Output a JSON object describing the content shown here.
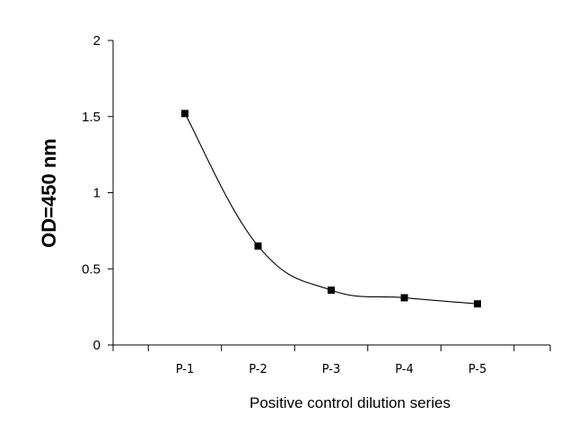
{
  "chart_data": {
    "type": "line",
    "smooth": true,
    "title": "",
    "xlabel": "Positive control dilution series",
    "ylabel": "OD=450 nm",
    "categories": [
      "P-1",
      "P-2",
      "P-3",
      "P-4",
      "P-5"
    ],
    "series": [
      {
        "values": [
          1.52,
          0.65,
          0.36,
          0.31,
          0.27
        ],
        "marker": "square",
        "color": "#000000"
      }
    ],
    "ylim": [
      0,
      2
    ],
    "yticks": [
      0,
      0.5,
      1,
      1.5,
      2
    ],
    "ytick_labels": [
      "0",
      "0.5",
      "1",
      "1.5",
      "2"
    ],
    "grid": false,
    "legend": "none"
  }
}
